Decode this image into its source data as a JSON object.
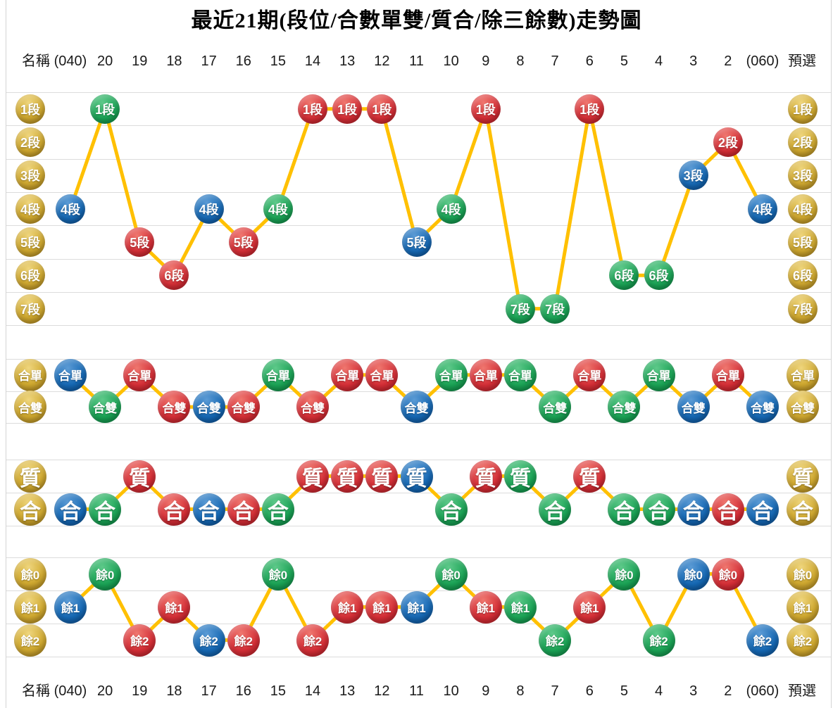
{
  "title": "最近21期(段位/合數單雙/質合/除三餘數)走勢圖",
  "header": {
    "prefix": "名稱",
    "columns": [
      "(040)",
      "20",
      "19",
      "18",
      "17",
      "16",
      "15",
      "14",
      "13",
      "12",
      "11",
      "10",
      "9",
      "8",
      "7",
      "6",
      "5",
      "4",
      "3",
      "2",
      "(060)"
    ],
    "suffix": "預選"
  },
  "footer": {
    "prefix": "名稱",
    "columns": [
      "(040)",
      "20",
      "19",
      "18",
      "17",
      "16",
      "15",
      "14",
      "13",
      "12",
      "11",
      "10",
      "9",
      "8",
      "7",
      "6",
      "5",
      "4",
      "3",
      "2",
      "(060)"
    ],
    "suffix": "預選"
  },
  "colors": {
    "gold": "#cda62f",
    "red": "#d52e36",
    "blue": "#1568b4",
    "green": "#1aa355",
    "line": "#ffc000",
    "grid": "#dcdcdc",
    "ball_text": "#ffffff"
  },
  "chart_data": [
    {
      "type": "line",
      "name": "段位",
      "rows": [
        "1段",
        "2段",
        "3段",
        "4段",
        "5段",
        "6段",
        "7段"
      ],
      "categories": [
        "(040)",
        "20",
        "19",
        "18",
        "17",
        "16",
        "15",
        "14",
        "13",
        "12",
        "11",
        "10",
        "9",
        "8",
        "7",
        "6",
        "5",
        "4",
        "3",
        "2",
        "(060)"
      ],
      "values": [
        "4段",
        "1段",
        "5段",
        "6段",
        "4段",
        "5段",
        "4段",
        "1段",
        "1段",
        "1段",
        "5段",
        "4段",
        "1段",
        "7段",
        "7段",
        "1段",
        "6段",
        "6段",
        "3段",
        "2段",
        "4段"
      ],
      "ball_colors": [
        "blue",
        "green",
        "red",
        "red",
        "blue",
        "red",
        "green",
        "red",
        "red",
        "red",
        "blue",
        "green",
        "red",
        "green",
        "green",
        "red",
        "green",
        "green",
        "blue",
        "red",
        "blue"
      ]
    },
    {
      "type": "line",
      "name": "合數單雙",
      "rows": [
        "合單",
        "合雙"
      ],
      "categories": [
        "(040)",
        "20",
        "19",
        "18",
        "17",
        "16",
        "15",
        "14",
        "13",
        "12",
        "11",
        "10",
        "9",
        "8",
        "7",
        "6",
        "5",
        "4",
        "3",
        "2",
        "(060)"
      ],
      "values": [
        "合單",
        "合雙",
        "合單",
        "合雙",
        "合雙",
        "合雙",
        "合單",
        "合雙",
        "合單",
        "合單",
        "合雙",
        "合單",
        "合單",
        "合單",
        "合雙",
        "合單",
        "合雙",
        "合單",
        "合雙",
        "合單",
        "合雙"
      ],
      "ball_colors": [
        "blue",
        "green",
        "red",
        "red",
        "blue",
        "red",
        "green",
        "red",
        "red",
        "red",
        "blue",
        "green",
        "red",
        "green",
        "green",
        "red",
        "green",
        "green",
        "blue",
        "red",
        "blue"
      ]
    },
    {
      "type": "line",
      "name": "質合",
      "rows": [
        "質",
        "合"
      ],
      "categories": [
        "(040)",
        "20",
        "19",
        "18",
        "17",
        "16",
        "15",
        "14",
        "13",
        "12",
        "11",
        "10",
        "9",
        "8",
        "7",
        "6",
        "5",
        "4",
        "3",
        "2",
        "(060)"
      ],
      "values": [
        "合",
        "合",
        "質",
        "合",
        "合",
        "合",
        "合",
        "質",
        "質",
        "質",
        "質",
        "合",
        "質",
        "質",
        "合",
        "質",
        "合",
        "合",
        "合",
        "合",
        "合"
      ],
      "ball_colors": [
        "blue",
        "green",
        "red",
        "red",
        "blue",
        "red",
        "green",
        "red",
        "red",
        "red",
        "blue",
        "green",
        "red",
        "green",
        "green",
        "red",
        "green",
        "green",
        "blue",
        "red",
        "blue"
      ]
    },
    {
      "type": "line",
      "name": "除三餘數",
      "rows": [
        "餘0",
        "餘1",
        "餘2"
      ],
      "categories": [
        "(040)",
        "20",
        "19",
        "18",
        "17",
        "16",
        "15",
        "14",
        "13",
        "12",
        "11",
        "10",
        "9",
        "8",
        "7",
        "6",
        "5",
        "4",
        "3",
        "2",
        "(060)"
      ],
      "values": [
        "餘1",
        "餘0",
        "餘2",
        "餘1",
        "餘2",
        "餘2",
        "餘0",
        "餘2",
        "餘1",
        "餘1",
        "餘1",
        "餘0",
        "餘1",
        "餘1",
        "餘2",
        "餘1",
        "餘0",
        "餘2",
        "餘0",
        "餘0",
        "餘2"
      ],
      "ball_colors": [
        "blue",
        "green",
        "red",
        "red",
        "blue",
        "red",
        "green",
        "red",
        "red",
        "red",
        "blue",
        "green",
        "red",
        "green",
        "green",
        "red",
        "green",
        "green",
        "blue",
        "red",
        "blue"
      ]
    }
  ]
}
